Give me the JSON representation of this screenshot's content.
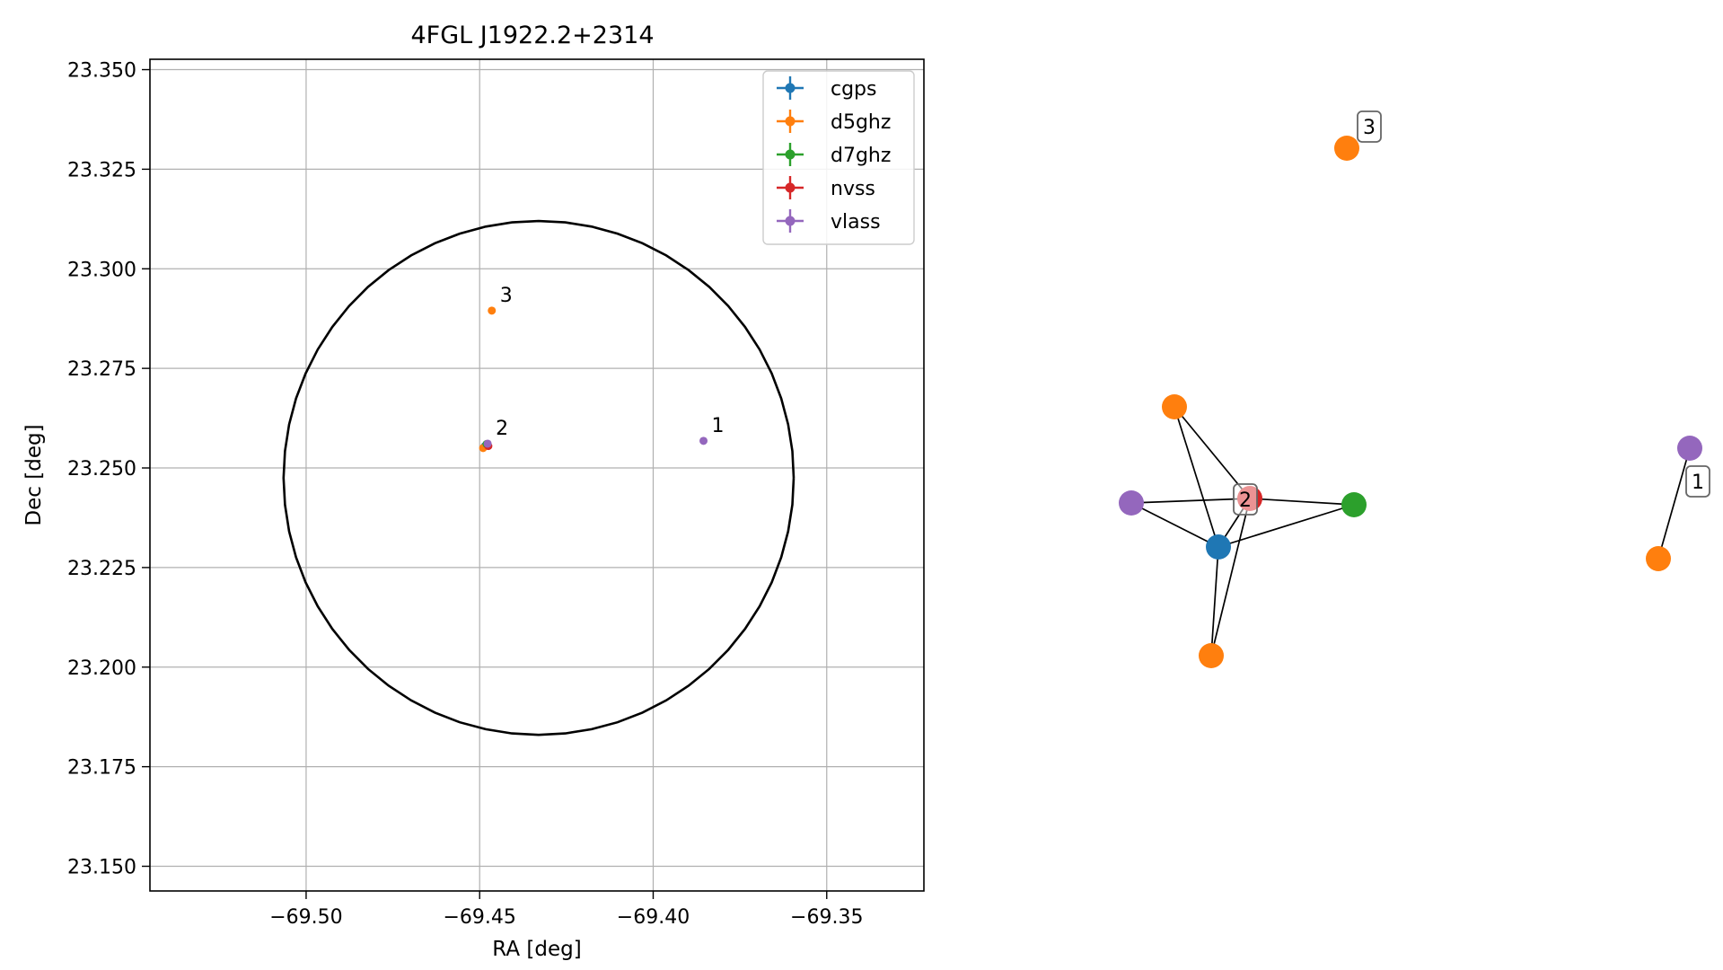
{
  "chart_data": [
    {
      "type": "scatter",
      "title": "4FGL J1922.2+2314",
      "xlabel": "RA [deg]",
      "ylabel": "Dec [deg]",
      "xlim": [
        -69.545,
        -69.322
      ],
      "ylim": [
        23.1438,
        23.3526
      ],
      "x_ticks": [
        -69.5,
        -69.45,
        -69.4,
        -69.35
      ],
      "x_tick_labels": [
        "−69.50",
        "−69.45",
        "−69.40",
        "−69.35"
      ],
      "y_ticks": [
        23.15,
        23.175,
        23.2,
        23.225,
        23.25,
        23.275,
        23.3,
        23.325,
        23.35
      ],
      "y_tick_labels": [
        "23.150",
        "23.175",
        "23.200",
        "23.225",
        "23.250",
        "23.275",
        "23.300",
        "23.325",
        "23.350"
      ],
      "grid": true,
      "legend_position": "top-right",
      "ellipse": {
        "ra_center": -69.433,
        "dec_center": 23.2475,
        "ra_semi_axis": 0.0735,
        "dec_semi_axis": 0.0645
      },
      "series": [
        {
          "name": "cgps",
          "color": "#1f77b4",
          "points": [
            [
              -69.4485,
              23.2555
            ]
          ]
        },
        {
          "name": "d5ghz",
          "color": "#ff7f0e",
          "points": [
            [
              -69.4465,
              23.2895
            ],
            [
              -69.449,
              23.255
            ]
          ]
        },
        {
          "name": "d7ghz",
          "color": "#2ca02c",
          "points": [
            [
              -69.448,
              23.256
            ]
          ]
        },
        {
          "name": "nvss",
          "color": "#d62728",
          "points": [
            [
              -69.4475,
              23.2555
            ]
          ]
        },
        {
          "name": "vlass",
          "color": "#9467bd",
          "points": [
            [
              -69.4477,
              23.2561
            ],
            [
              -69.3855,
              23.2568
            ]
          ]
        }
      ],
      "annotations": [
        {
          "text": "1",
          "ra": -69.3855,
          "dec": 23.2568
        },
        {
          "text": "2",
          "ra": -69.4477,
          "dec": 23.2561
        },
        {
          "text": "3",
          "ra": -69.4465,
          "dec": 23.2895
        }
      ]
    },
    {
      "type": "network",
      "nodes": [
        {
          "id": "c5_top",
          "color": "#ff7f0e"
        },
        {
          "id": "cluster2_nvss",
          "color": "#d62728",
          "label": "2"
        },
        {
          "id": "vlass_left",
          "color": "#9467bd"
        },
        {
          "id": "d7ghz",
          "color": "#2ca02c"
        },
        {
          "id": "cgps",
          "color": "#1f77b4"
        },
        {
          "id": "d5_bottom",
          "color": "#ff7f0e"
        },
        {
          "id": "d5_cluster3",
          "color": "#ff7f0e",
          "label": "3"
        },
        {
          "id": "vlass_cluster1",
          "color": "#9467bd",
          "label": "1"
        },
        {
          "id": "d5_cluster1",
          "color": "#ff7f0e"
        }
      ],
      "edges": [
        [
          "c5_top",
          "cluster2_nvss"
        ],
        [
          "c5_top",
          "cgps"
        ],
        [
          "vlass_left",
          "cluster2_nvss"
        ],
        [
          "vlass_left",
          "cgps"
        ],
        [
          "d7ghz",
          "cluster2_nvss"
        ],
        [
          "d7ghz",
          "cgps"
        ],
        [
          "cluster2_nvss",
          "cgps"
        ],
        [
          "cluster2_nvss",
          "d5_bottom"
        ],
        [
          "cgps",
          "d5_bottom"
        ],
        [
          "vlass_cluster1",
          "d5_cluster1"
        ]
      ]
    }
  ]
}
